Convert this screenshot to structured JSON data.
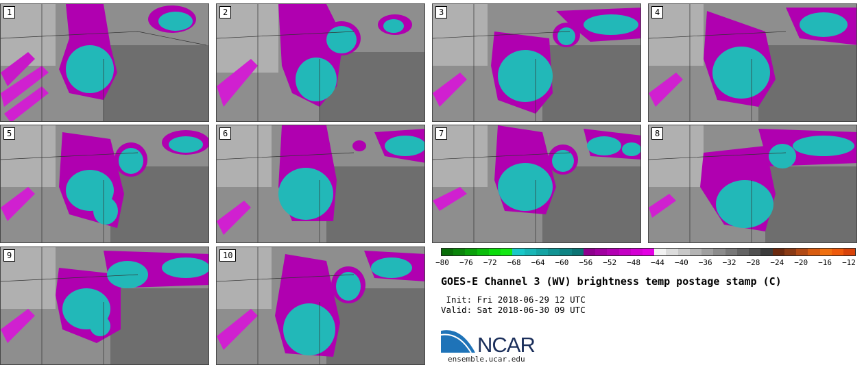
{
  "panels": [
    {
      "label": "1"
    },
    {
      "label": "2"
    },
    {
      "label": "3"
    },
    {
      "label": "4"
    },
    {
      "label": "5"
    },
    {
      "label": "6"
    },
    {
      "label": "7"
    },
    {
      "label": "8"
    },
    {
      "label": "9"
    },
    {
      "label": "10"
    }
  ],
  "colorbar": {
    "colors": [
      "#0a6e0a",
      "#0b850b",
      "#0ba00b",
      "#0bbd0b",
      "#0bdc0b",
      "#14e814",
      "#19c8c8",
      "#18b6b6",
      "#15a4a4",
      "#129494",
      "#0f8484",
      "#0c7474",
      "#8e008e",
      "#a000a0",
      "#b200b2",
      "#c400c4",
      "#d400d4",
      "#e400e4",
      "#f2f2f2",
      "#dcdcdc",
      "#c8c8c8",
      "#b4b4b4",
      "#a0a0a0",
      "#8c8c8c",
      "#787878",
      "#646464",
      "#505050",
      "#3c3c3c",
      "#6b2a10",
      "#8a3a14",
      "#b24a14",
      "#d85c10",
      "#f07010",
      "#ee5a0c",
      "#d8430a"
    ],
    "ticks": [
      "−80",
      "−76",
      "−72",
      "−68",
      "−64",
      "−60",
      "−56",
      "−52",
      "−48",
      "−44",
      "−40",
      "−36",
      "−32",
      "−28",
      "−24",
      "−20",
      "−16",
      "−12"
    ]
  },
  "title": "GOES-E Channel 3 (WV) brightness temp postage stamp (C)",
  "init": " Init: Fri 2018-06-29 12 UTC",
  "valid": "Valid: Sat 2018-06-30 09 UTC",
  "logo": {
    "text": "NCAR",
    "site": "ensemble.ucar.edu",
    "color": "#1e73b8"
  }
}
